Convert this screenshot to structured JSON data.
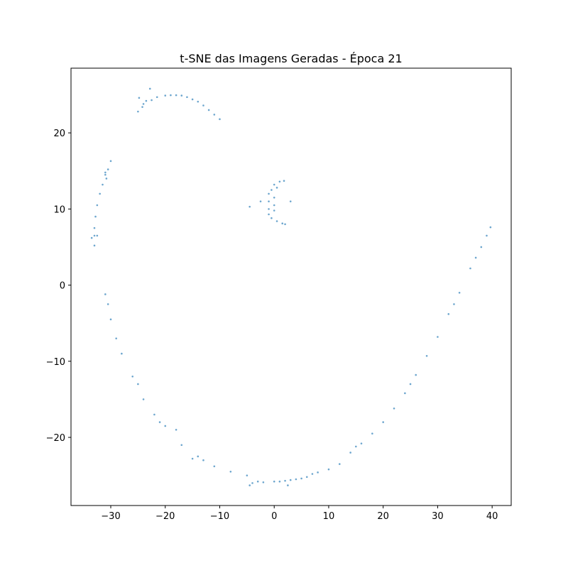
{
  "chart_data": {
    "type": "scatter",
    "title": "t-SNE das Imagens Geradas - Época 21",
    "color": "#1f77b4",
    "x": [
      -24.8,
      -24,
      -23.5,
      -22.8,
      -22.5,
      -21.5,
      -20,
      -19,
      -18,
      -17,
      -16,
      -15,
      -14,
      -13,
      -12,
      -11,
      -10,
      -25,
      -24.2,
      -30,
      -30.5,
      -31,
      -31.5,
      -32,
      -32.5,
      -32.8,
      -33,
      -33,
      -33.5,
      -33,
      -32.5,
      -31,
      -30.8,
      1,
      0,
      -0.5,
      -1,
      -1,
      -1,
      -1,
      -0.5,
      0.5,
      1.5,
      2,
      3,
      1.8,
      0.5,
      0,
      0,
      0,
      -4.5,
      -2.5,
      -31,
      -30,
      -28,
      -25,
      -22,
      -20,
      -17,
      -14,
      -11,
      -8,
      -5,
      -3,
      0,
      3,
      5,
      8,
      12,
      14,
      16,
      18,
      20,
      22,
      24,
      26,
      28,
      30,
      32,
      34,
      36,
      37,
      38,
      39,
      39.7,
      15,
      25,
      33,
      2,
      4,
      6,
      10,
      -4,
      -4.5,
      -2,
      1,
      2.5,
      7,
      -15,
      -13,
      -26,
      -29,
      -30.5,
      -24,
      -18,
      -21
    ],
    "y": [
      24.6,
      23.8,
      24.2,
      25.8,
      24.3,
      24.7,
      24.9,
      24.95,
      24.95,
      24.9,
      24.7,
      24.4,
      24.1,
      23.6,
      23,
      22.4,
      21.8,
      22.8,
      23.4,
      16.3,
      15.2,
      14.5,
      13.2,
      12,
      10.5,
      9,
      7.5,
      6.5,
      6.2,
      5.2,
      6.5,
      14.8,
      14,
      13.6,
      13.2,
      12.5,
      12,
      11,
      10,
      9.3,
      8.8,
      8.4,
      8.1,
      8,
      11,
      13.7,
      12.8,
      11.5,
      10.5,
      9.8,
      10.3,
      11,
      -1.2,
      -4.5,
      -9,
      -13,
      -17,
      -18.5,
      -21,
      -22.5,
      -23.8,
      -24.5,
      -25,
      -25.8,
      -25.8,
      -25.6,
      -25.4,
      -24.6,
      -23.5,
      -22,
      -20.8,
      -19.5,
      -18,
      -16.2,
      -14.2,
      -11.8,
      -9.3,
      -6.8,
      -3.8,
      -1,
      2.2,
      3.6,
      5,
      6.5,
      7.6,
      -21.2,
      -13,
      -2.5,
      -25.7,
      -25.5,
      -25.2,
      -24.2,
      -26,
      -26.3,
      -25.9,
      -25.8,
      -26.3,
      -24.8,
      -22.8,
      -23,
      -12,
      -7,
      -2.5,
      -15,
      -19,
      -18
    ],
    "xlim": [
      -37.3,
      43.5
    ],
    "ylim": [
      -28.95,
      28.5
    ],
    "xticks": [
      {
        "value": -30,
        "label": "−30"
      },
      {
        "value": -20,
        "label": "−20"
      },
      {
        "value": -10,
        "label": "−10"
      },
      0,
      10,
      20,
      30,
      40
    ],
    "yticks": [
      {
        "value": -20,
        "label": "−20"
      },
      {
        "value": -10,
        "label": "−10"
      },
      0,
      10,
      20
    ]
  }
}
